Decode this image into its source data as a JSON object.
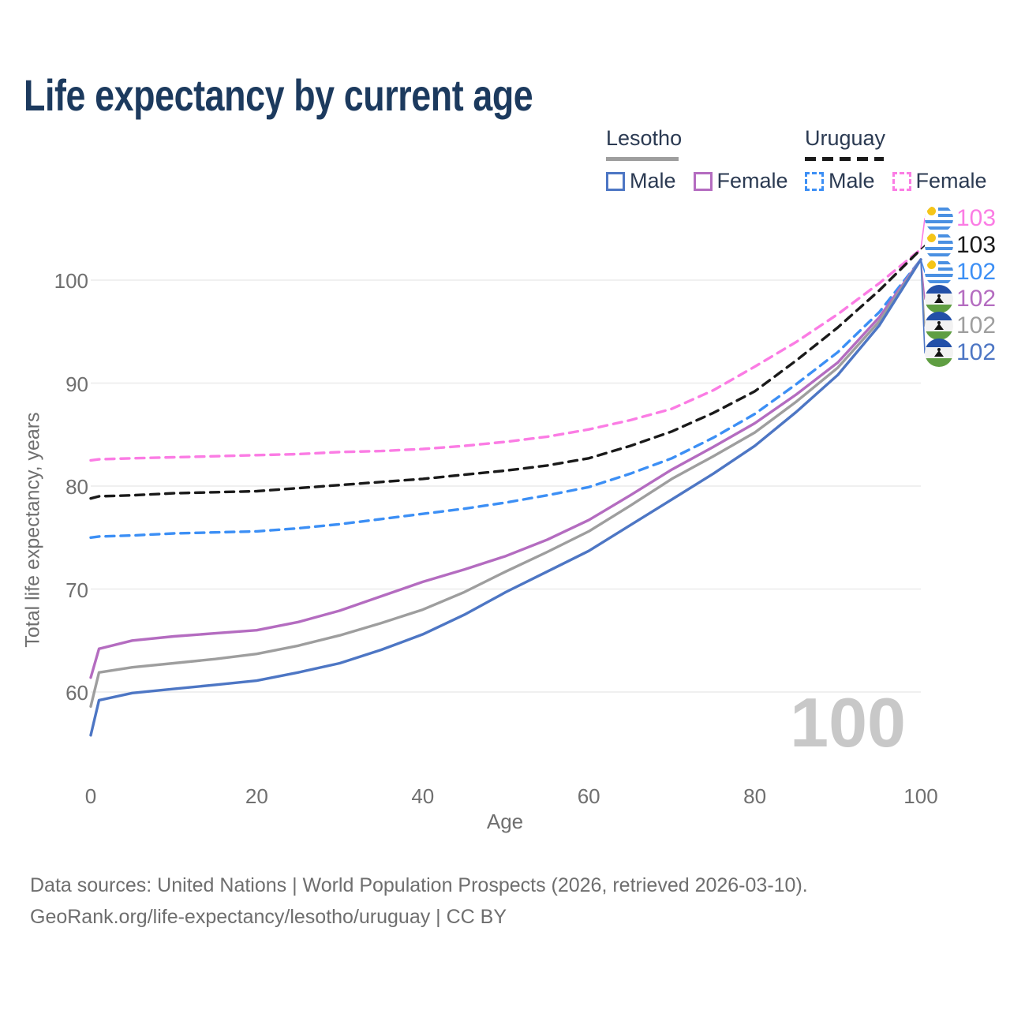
{
  "title": "Life expectancy by current age",
  "legend": {
    "groups": [
      {
        "country": "Lesotho",
        "style": "solid",
        "items": [
          {
            "label": "Male",
            "color": "#4d76c4"
          },
          {
            "label": "Female",
            "color": "#b46cc0"
          }
        ]
      },
      {
        "country": "Uruguay",
        "style": "dashed",
        "items": [
          {
            "label": "Male",
            "color": "#3c8ff5"
          },
          {
            "label": "Female",
            "color": "#fb7ce4"
          }
        ]
      }
    ]
  },
  "chart_data": {
    "type": "line",
    "title": "Life expectancy by current age",
    "xlabel": "Age",
    "ylabel": "Total life expectancy, years",
    "xlim": [
      0,
      100
    ],
    "ylim": [
      55,
      104
    ],
    "x_ticks": [
      0,
      20,
      40,
      60,
      80,
      100
    ],
    "y_ticks": [
      60,
      70,
      80,
      90,
      100
    ],
    "grid": "horizontal",
    "legend_position": "top-right",
    "watermark": "100",
    "x": [
      0,
      1,
      5,
      10,
      15,
      20,
      25,
      30,
      35,
      40,
      45,
      50,
      55,
      60,
      65,
      70,
      75,
      80,
      85,
      90,
      95,
      100
    ],
    "series": [
      {
        "name": "Uruguay Female",
        "country": "uruguay",
        "sex": "Female",
        "color": "#fb7ce4",
        "dash": true,
        "end_label": "103",
        "values": [
          82.5,
          82.6,
          82.7,
          82.8,
          82.9,
          83.0,
          83.1,
          83.3,
          83.4,
          83.6,
          83.9,
          84.3,
          84.8,
          85.5,
          86.4,
          87.5,
          89.3,
          91.6,
          94.0,
          96.7,
          99.7,
          103
        ]
      },
      {
        "name": "Uruguay Both sexes",
        "country": "uruguay",
        "sex": "Both",
        "color": "#1a1a1a",
        "dash": true,
        "end_label": "103",
        "values": [
          78.8,
          79.0,
          79.1,
          79.3,
          79.4,
          79.5,
          79.8,
          80.1,
          80.4,
          80.7,
          81.1,
          81.5,
          82.0,
          82.7,
          83.9,
          85.3,
          87.1,
          89.2,
          92.2,
          95.4,
          99.0,
          103
        ]
      },
      {
        "name": "Uruguay Male",
        "country": "uruguay",
        "sex": "Male",
        "color": "#3c8ff5",
        "dash": true,
        "end_label": "102",
        "values": [
          75.0,
          75.1,
          75.2,
          75.4,
          75.5,
          75.6,
          75.9,
          76.3,
          76.8,
          77.3,
          77.8,
          78.4,
          79.1,
          79.9,
          81.2,
          82.7,
          84.7,
          87.0,
          89.9,
          93.0,
          96.9,
          102
        ]
      },
      {
        "name": "Lesotho Female",
        "country": "lesotho",
        "sex": "Female",
        "color": "#b46cc0",
        "dash": false,
        "end_label": "102",
        "values": [
          61.4,
          64.2,
          65.0,
          65.4,
          65.7,
          66.0,
          66.8,
          67.9,
          69.3,
          70.7,
          71.9,
          73.2,
          74.8,
          76.7,
          79.1,
          81.6,
          83.8,
          86.1,
          88.9,
          92.0,
          96.4,
          102
        ]
      },
      {
        "name": "Lesotho Both sexes",
        "country": "lesotho",
        "sex": "Both",
        "color": "#9e9e9e",
        "dash": false,
        "end_label": "102",
        "values": [
          58.6,
          61.9,
          62.4,
          62.8,
          63.2,
          63.7,
          64.5,
          65.5,
          66.7,
          68.0,
          69.7,
          71.7,
          73.6,
          75.6,
          78.1,
          80.7,
          82.9,
          85.2,
          88.2,
          91.5,
          96.0,
          102
        ]
      },
      {
        "name": "Lesotho Male",
        "country": "lesotho",
        "sex": "Male",
        "color": "#4d76c4",
        "dash": false,
        "end_label": "102",
        "values": [
          55.8,
          59.2,
          59.9,
          60.3,
          60.7,
          61.1,
          61.9,
          62.8,
          64.1,
          65.6,
          67.5,
          69.7,
          71.7,
          73.7,
          76.2,
          78.7,
          81.2,
          83.9,
          87.2,
          90.8,
          95.6,
          102
        ]
      }
    ]
  },
  "footer": {
    "line1": "Data sources: United Nations | World Population Prospects (2026, retrieved 2026-03-10).",
    "line2": "GeoRank.org/life-expectancy/lesotho/uruguay | CC BY"
  }
}
